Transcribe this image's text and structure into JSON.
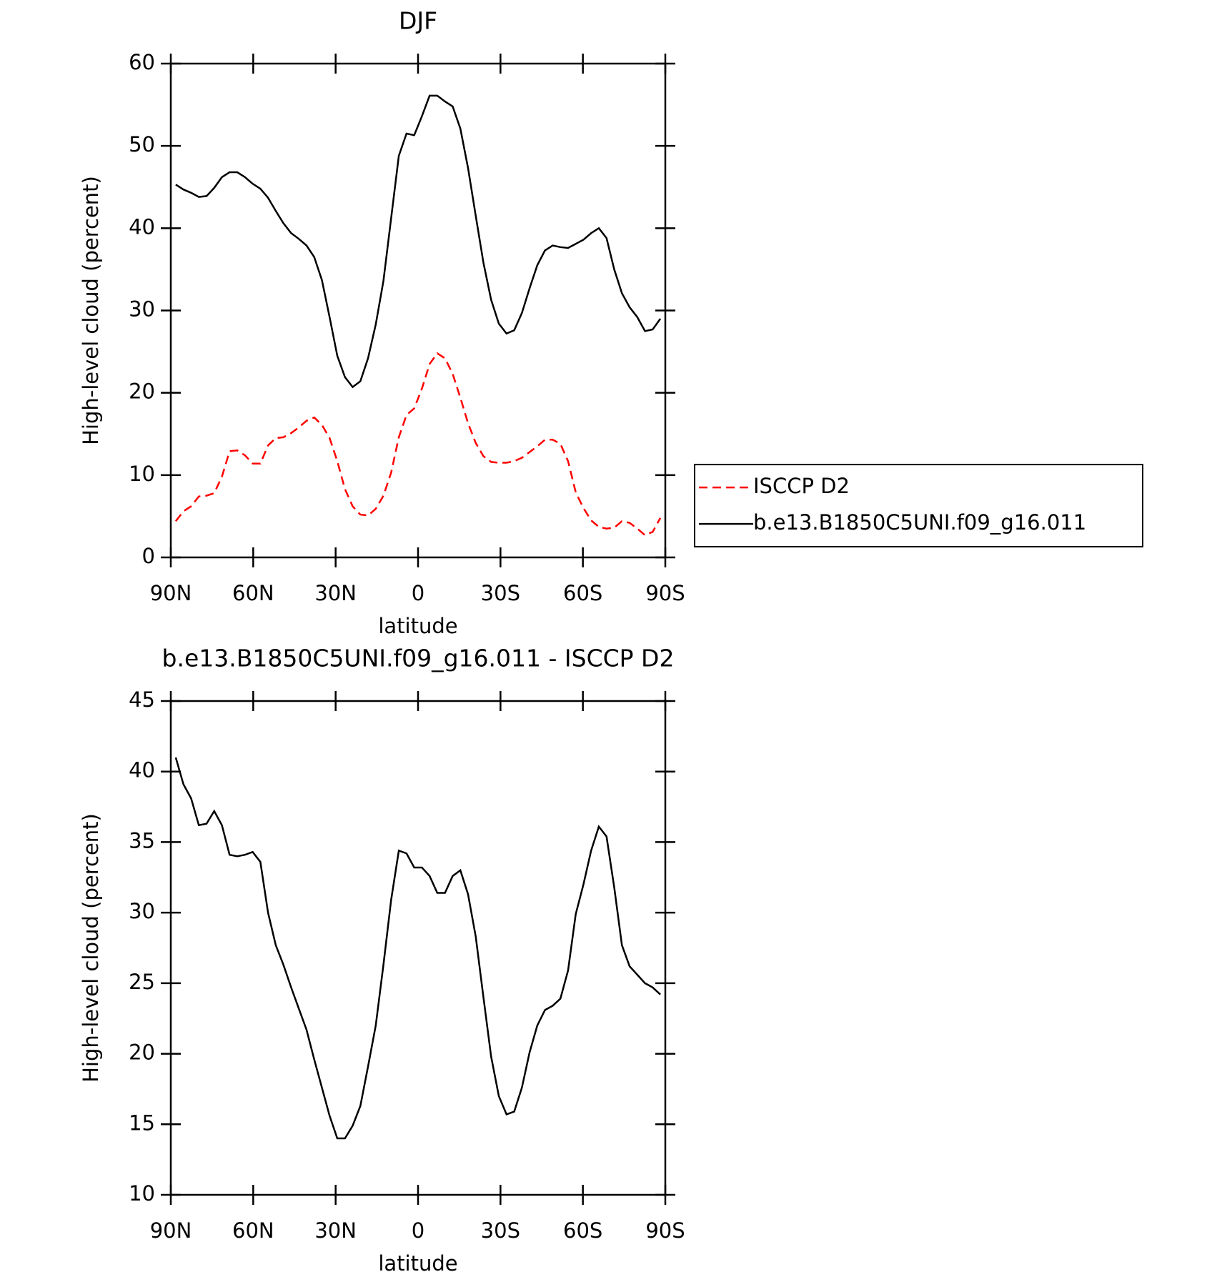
{
  "chart_data": [
    {
      "type": "line",
      "title": "DJF",
      "xlabel": "latitude",
      "ylabel": "High-level cloud (percent)",
      "xlim": [
        90,
        -90
      ],
      "xticks": [
        {
          "value": 90,
          "label": "90N"
        },
        {
          "value": 60,
          "label": "60N"
        },
        {
          "value": 30,
          "label": "30N"
        },
        0,
        {
          "value": -30,
          "label": "30S"
        },
        {
          "value": -60,
          "label": "60S"
        },
        {
          "value": -90,
          "label": "90S"
        }
      ],
      "ylim": [
        0,
        60
      ],
      "yticks": [
        0,
        10,
        20,
        30,
        40,
        50,
        60
      ],
      "legend": "right",
      "x": [
        88.2,
        85.4,
        82.6,
        79.8,
        77.0,
        74.2,
        71.4,
        68.6,
        65.8,
        63.0,
        60.2,
        57.4,
        54.6,
        51.8,
        49.0,
        46.2,
        43.4,
        40.6,
        37.8,
        35.0,
        32.2,
        29.4,
        26.6,
        23.8,
        21.0,
        18.2,
        15.4,
        12.6,
        9.8,
        7.0,
        4.2,
        1.4,
        -1.4,
        -4.2,
        -7.0,
        -9.8,
        -12.6,
        -15.4,
        -18.2,
        -21.0,
        -23.8,
        -26.6,
        -29.4,
        -32.2,
        -35.0,
        -37.8,
        -40.6,
        -43.4,
        -46.2,
        -49.0,
        -51.8,
        -54.6,
        -57.4,
        -60.2,
        -63.0,
        -65.8,
        -68.6,
        -71.4,
        -74.2,
        -77.0,
        -79.8,
        -82.6,
        -85.4,
        -88.2
      ],
      "series": [
        {
          "name": "ISCCP D2",
          "color": "#ff0000",
          "linestyle": "dashed",
          "values": [
            4.4,
            5.6,
            6.2,
            7.4,
            7.5,
            7.8,
            9.8,
            12.9,
            13.0,
            12.4,
            11.4,
            11.4,
            13.6,
            14.5,
            14.6,
            15.1,
            15.8,
            16.6,
            17.0,
            16.1,
            14.5,
            11.7,
            8.3,
            6.2,
            5.2,
            5.1,
            5.9,
            7.5,
            10.3,
            14.6,
            17.3,
            18.1,
            20.5,
            23.5,
            24.8,
            24.2,
            22.3,
            19.4,
            16.3,
            13.9,
            12.3,
            11.6,
            11.5,
            11.5,
            11.7,
            12.1,
            12.8,
            13.5,
            14.3,
            14.3,
            13.8,
            11.7,
            7.9,
            6.0,
            4.5,
            3.7,
            3.5,
            3.6,
            4.4,
            4.2,
            3.5,
            2.7,
            3.1,
            4.8
          ]
        },
        {
          "name": "b.e13.B1850C5UNI.f09_g16.011",
          "color": "#000000",
          "linestyle": "solid",
          "values": [
            45.3,
            44.7,
            44.3,
            43.8,
            43.9,
            44.9,
            46.2,
            46.8,
            46.8,
            46.2,
            45.4,
            44.8,
            43.7,
            42.1,
            40.6,
            39.4,
            38.7,
            37.9,
            36.5,
            33.7,
            29.2,
            24.5,
            21.9,
            20.7,
            21.4,
            24.2,
            28.3,
            33.6,
            41.2,
            48.8,
            51.5,
            51.3,
            53.6,
            56.1,
            56.1,
            55.4,
            54.8,
            52.1,
            47.3,
            41.5,
            35.8,
            31.3,
            28.4,
            27.2,
            27.6,
            29.7,
            32.7,
            35.5,
            37.3,
            37.9,
            37.7,
            37.6,
            38.1,
            38.6,
            39.4,
            40.0,
            38.8,
            35.0,
            32.1,
            30.4,
            29.2,
            27.5,
            27.7,
            29.0
          ]
        }
      ]
    },
    {
      "type": "line",
      "title": "b.e13.B1850C5UNI.f09_g16.011 - ISCCP D2",
      "xlabel": "latitude",
      "ylabel": "High-level cloud (percent)",
      "xlim": [
        90,
        -90
      ],
      "xticks": [
        {
          "value": 90,
          "label": "90N"
        },
        {
          "value": 60,
          "label": "60N"
        },
        {
          "value": 30,
          "label": "30N"
        },
        0,
        {
          "value": -30,
          "label": "30S"
        },
        {
          "value": -60,
          "label": "60S"
        },
        {
          "value": -90,
          "label": "90S"
        }
      ],
      "ylim": [
        10,
        45
      ],
      "yticks": [
        10,
        15,
        20,
        25,
        30,
        35,
        40,
        45
      ],
      "x": [
        88.2,
        85.4,
        82.6,
        79.8,
        77.0,
        74.2,
        71.4,
        68.6,
        65.8,
        63.0,
        60.2,
        57.4,
        54.6,
        51.8,
        49.0,
        46.2,
        43.4,
        40.6,
        37.8,
        35.0,
        32.2,
        29.4,
        26.6,
        23.8,
        21.0,
        18.2,
        15.4,
        12.6,
        9.8,
        7.0,
        4.2,
        1.4,
        -1.4,
        -4.2,
        -7.0,
        -9.8,
        -12.6,
        -15.4,
        -18.2,
        -21.0,
        -23.8,
        -26.6,
        -29.4,
        -32.2,
        -35.0,
        -37.8,
        -40.6,
        -43.4,
        -46.2,
        -49.0,
        -51.8,
        -54.6,
        -57.4,
        -60.2,
        -63.0,
        -65.8,
        -68.6,
        -71.4,
        -74.2,
        -77.0,
        -79.8,
        -82.6,
        -85.4,
        -88.2
      ],
      "series": [
        {
          "color": "#000000",
          "linestyle": "solid",
          "values": [
            41.0,
            39.1,
            38.1,
            36.2,
            36.3,
            37.2,
            36.2,
            34.1,
            34.0,
            34.1,
            34.3,
            33.6,
            30.0,
            27.7,
            26.3,
            24.7,
            23.2,
            21.7,
            19.6,
            17.6,
            15.6,
            14.0,
            14.0,
            14.9,
            16.3,
            19.1,
            22.0,
            26.3,
            30.9,
            34.4,
            34.2,
            33.2,
            33.2,
            32.6,
            31.4,
            31.4,
            32.6,
            33.0,
            31.3,
            28.3,
            24.0,
            19.8,
            17.0,
            15.7,
            15.9,
            17.6,
            20.1,
            22.0,
            23.1,
            23.4,
            23.9,
            25.9,
            29.9,
            32.0,
            34.4,
            36.1,
            35.4,
            31.8,
            27.7,
            26.2,
            25.6,
            25.0,
            24.7,
            24.2
          ]
        }
      ]
    }
  ]
}
